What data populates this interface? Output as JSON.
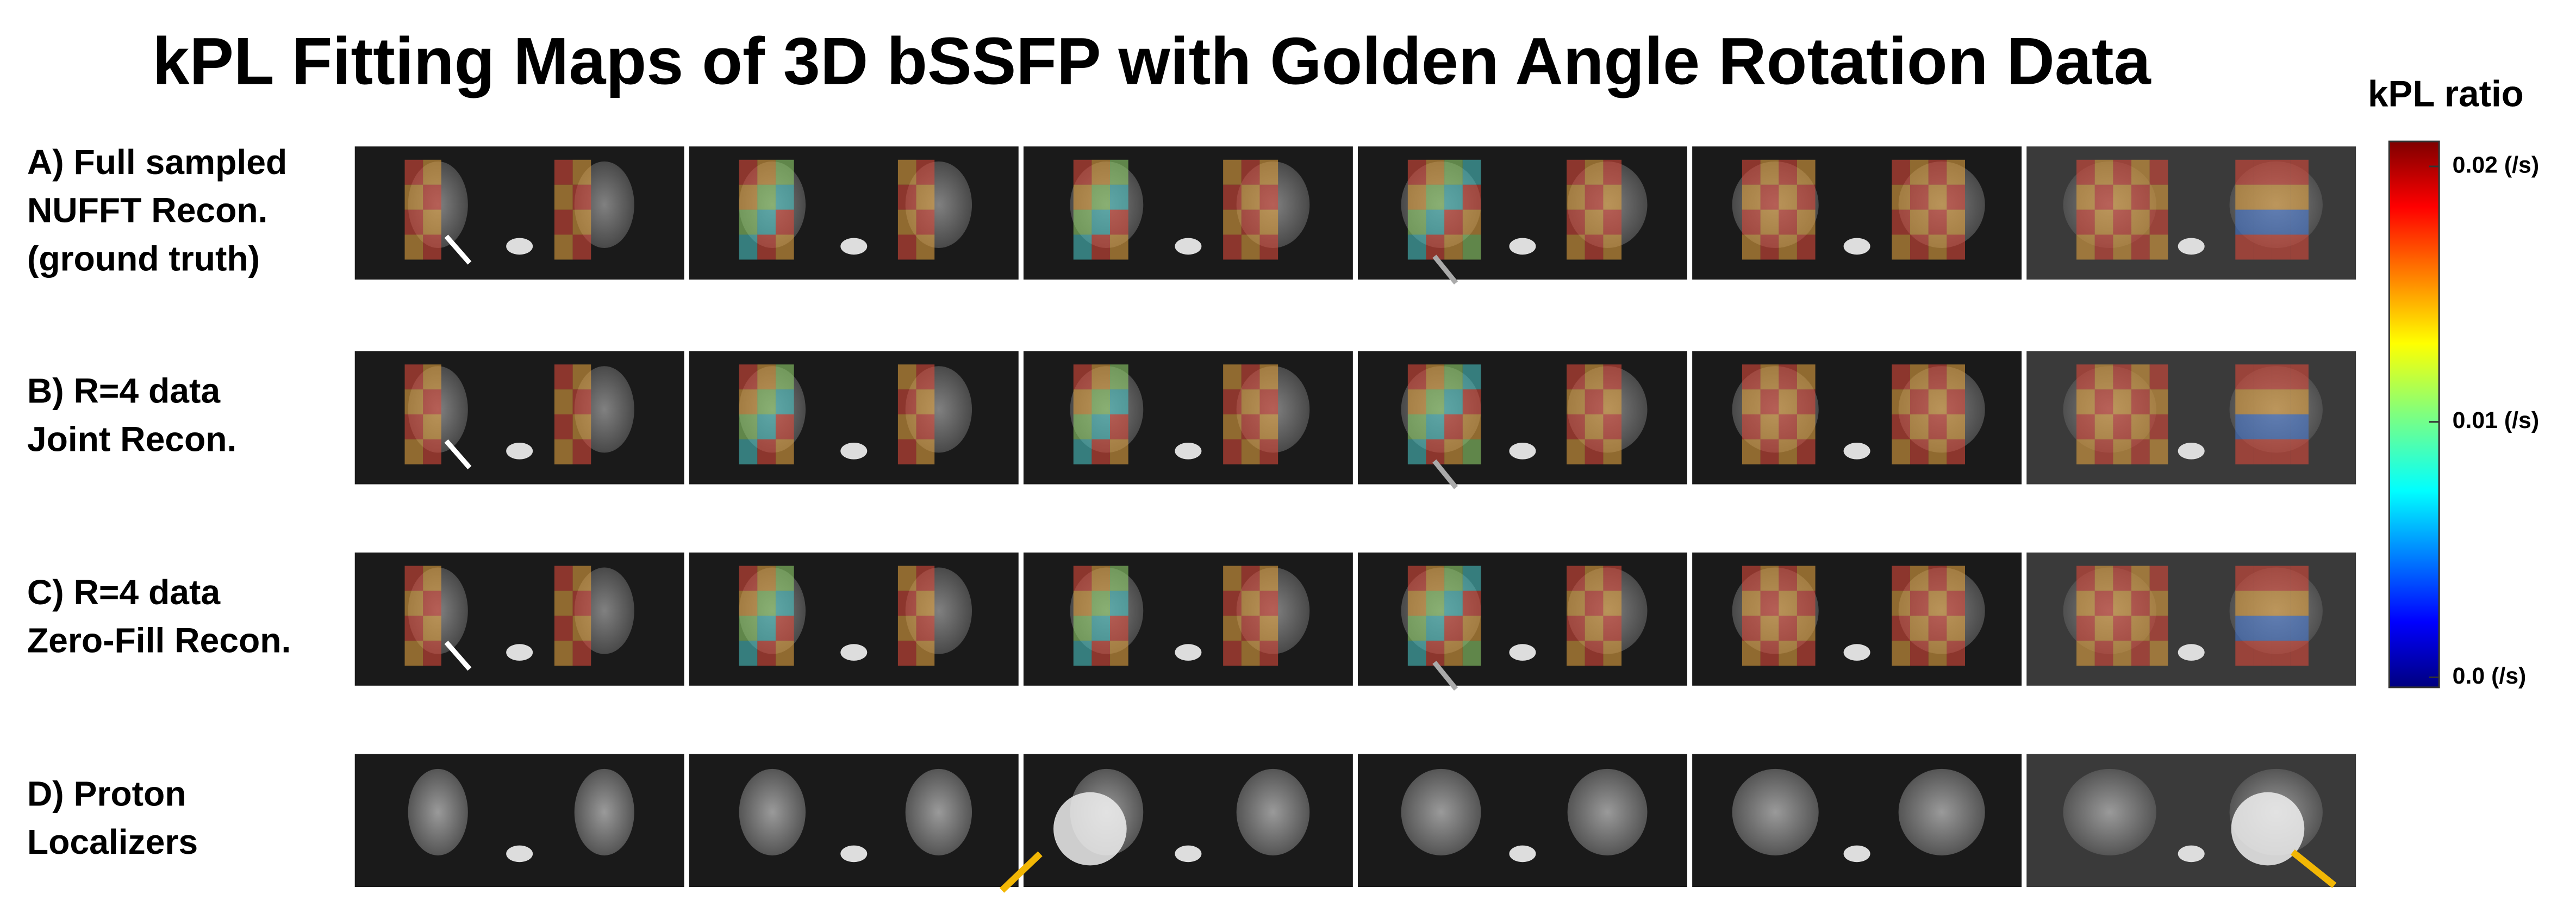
{
  "title": "kPL Fitting Maps of 3D bSSFP with Golden Angle Rotation Data",
  "rows": [
    {
      "lines": [
        "A) Full sampled",
        "NUFFT Recon.",
        "(ground truth)"
      ]
    },
    {
      "lines": [
        "B) R=4 data",
        "Joint Recon."
      ]
    },
    {
      "lines": [
        "C) R=4 data",
        "Zero-Fill Recon."
      ]
    },
    {
      "lines": [
        "D) Proton",
        "Localizers"
      ]
    }
  ],
  "colorbar": {
    "title": "kPL ratio",
    "range": [
      0,
      0.02
    ],
    "ticks": [
      {
        "value": 0.02,
        "label": "0.02 (/s)"
      },
      {
        "value": 0.01,
        "label": "0.01 (/s)"
      },
      {
        "value": 0,
        "label": "0.0 (/s)"
      }
    ]
  }
}
